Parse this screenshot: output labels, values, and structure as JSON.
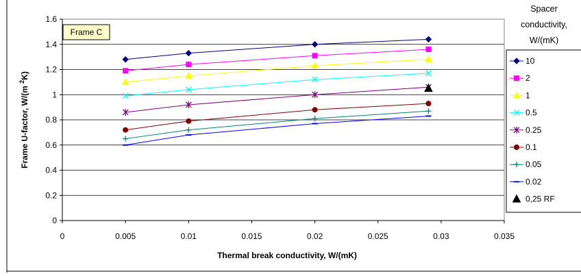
{
  "chart_data": {
    "type": "line",
    "annotation": "Frame C",
    "xlabel": "Thermal break conductivity, W/(mK)",
    "ylabel_main": "Frame U-factor, W/(m ",
    "ylabel_sup": "2",
    "ylabel_end": "K)",
    "xlim": [
      0,
      0.035
    ],
    "ylim": [
      0,
      1.6
    ],
    "xticks": [
      0,
      0.005,
      0.01,
      0.015,
      0.02,
      0.025,
      0.03,
      0.035
    ],
    "xtick_labels": [
      "0",
      "0.005",
      "0.01",
      "0.015",
      "0.02",
      "0.025",
      "0.03",
      "0.035"
    ],
    "yticks": [
      0,
      0.2,
      0.4,
      0.6,
      0.8,
      1,
      1.2,
      1.4,
      1.6
    ],
    "ytick_labels": [
      "0",
      "0.2",
      "0.4",
      "0.6",
      "0.8",
      "1",
      "1.2",
      "1.4",
      "1.6"
    ],
    "grid": "horizontal",
    "legend_title": [
      "Spacer",
      "conductivity,",
      "W/(mK)"
    ],
    "legend_position": "right",
    "x": [
      0.005,
      0.01,
      0.02,
      0.029
    ],
    "series": [
      {
        "name": "10",
        "color": "#000080",
        "marker": "diamond",
        "values": [
          1.28,
          1.33,
          1.4,
          1.44
        ]
      },
      {
        "name": "2",
        "color": "#ff00ff",
        "marker": "square",
        "values": [
          1.19,
          1.24,
          1.31,
          1.36
        ]
      },
      {
        "name": "1",
        "color": "#ffff00",
        "marker": "triangle",
        "values": [
          1.1,
          1.15,
          1.23,
          1.28
        ]
      },
      {
        "name": "0.5",
        "color": "#00ffff",
        "marker": "x",
        "values": [
          0.99,
          1.04,
          1.12,
          1.17
        ]
      },
      {
        "name": "0.25",
        "color": "#800080",
        "marker": "star",
        "values": [
          0.86,
          0.92,
          1.0,
          1.06
        ]
      },
      {
        "name": "0.1",
        "color": "#800000",
        "marker": "circle",
        "values": [
          0.72,
          0.79,
          0.88,
          0.93
        ]
      },
      {
        "name": "0.05",
        "color": "#008080",
        "marker": "plus",
        "values": [
          0.65,
          0.72,
          0.81,
          0.87
        ]
      },
      {
        "name": "0.02",
        "color": "#0000ff",
        "marker": "dash",
        "values": [
          0.6,
          0.68,
          0.77,
          0.83
        ]
      }
    ],
    "extra_points": [
      {
        "name": "0,25 RF",
        "color": "#000000",
        "marker": "triangle-filled",
        "x": 0.029,
        "y": 1.05
      }
    ]
  }
}
